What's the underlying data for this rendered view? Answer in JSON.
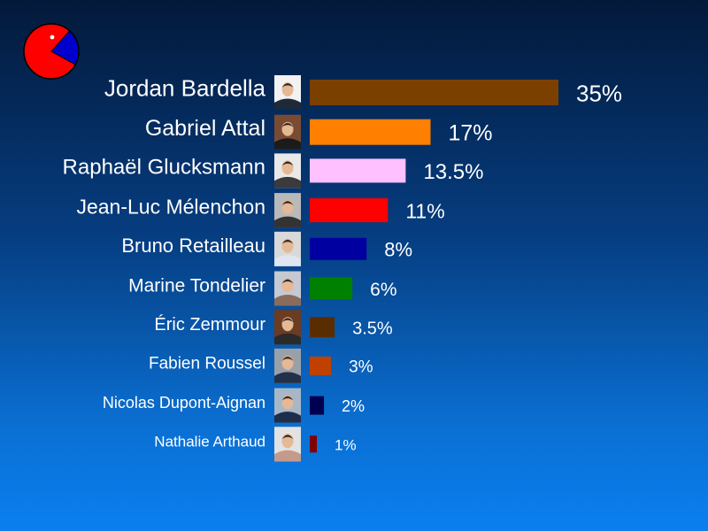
{
  "chart_data": {
    "type": "bar",
    "orientation": "horizontal",
    "categories": [
      "Jordan Bardella",
      "Gabriel Attal",
      "Raphaël Glucksmann",
      "Jean-Luc Mélenchon",
      "Bruno Retailleau",
      "Marine Tondelier",
      "Éric Zemmour",
      "Fabien Roussel",
      "Nicolas Dupont-Aignan",
      "Nathalie Arthaud"
    ],
    "values": [
      35,
      17,
      13.5,
      11,
      8,
      6,
      3.5,
      3,
      2,
      1
    ],
    "value_labels": [
      "35%",
      "17%",
      "13.5%",
      "11%",
      "8%",
      "6%",
      "3.5%",
      "3%",
      "2%",
      "1%"
    ],
    "colors": [
      "#7b3f00",
      "#ff8000",
      "#ffc0ff",
      "#ff0000",
      "#0000a0",
      "#008000",
      "#5a2d00",
      "#c04000",
      "#000050",
      "#800000"
    ],
    "xlim": [
      0,
      35
    ],
    "grid": false,
    "legend": "none"
  },
  "logo": {
    "icon": "pie-chart-icon",
    "colors": [
      "#ff0000",
      "#0000cc"
    ]
  },
  "background_colors": [
    "#03193a",
    "#0b7ff0"
  ]
}
